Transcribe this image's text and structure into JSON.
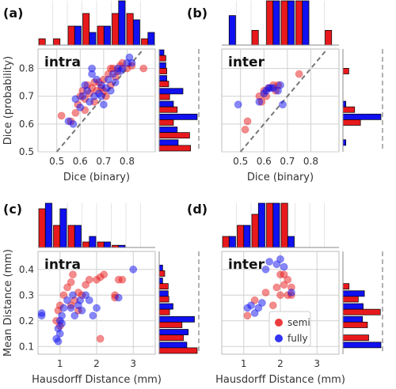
{
  "colors": {
    "semi": "#e8191c",
    "fully": "#1010f0",
    "grid": "#d0d0d0",
    "diagonal": "#777777"
  },
  "chart_data": [
    {
      "type": "scatter",
      "panel_letter": "(a)",
      "annotation": "intra",
      "xlabel": "Dice (binary)",
      "ylabel": "Dice (probability)",
      "xlim": [
        0.42,
        0.92
      ],
      "ylim": [
        0.5,
        0.87
      ],
      "xticks": [
        0.5,
        0.6,
        0.7,
        0.8
      ],
      "xtick_labels": [
        "0.5",
        "0.6",
        "0.7",
        "0.8"
      ],
      "yticks": [
        0.5,
        0.6,
        0.7,
        0.8
      ],
      "ytick_labels": [
        "0.5",
        "0.6",
        "0.7",
        "0.8"
      ],
      "grid": true,
      "diagonal": true,
      "marginals": true,
      "series": [
        {
          "name": "semi",
          "color_key": "semi",
          "points": [
            [
              0.52,
              0.63
            ],
            [
              0.56,
              0.61
            ],
            [
              0.58,
              0.64
            ],
            [
              0.59,
              0.67
            ],
            [
              0.6,
              0.7
            ],
            [
              0.61,
              0.72
            ],
            [
              0.62,
              0.69
            ],
            [
              0.63,
              0.74
            ],
            [
              0.64,
              0.71
            ],
            [
              0.65,
              0.73
            ],
            [
              0.66,
              0.68
            ],
            [
              0.67,
              0.72
            ],
            [
              0.68,
              0.75
            ],
            [
              0.69,
              0.73
            ],
            [
              0.7,
              0.76
            ],
            [
              0.71,
              0.7
            ],
            [
              0.72,
              0.78
            ],
            [
              0.73,
              0.74
            ],
            [
              0.74,
              0.8
            ],
            [
              0.75,
              0.77
            ],
            [
              0.76,
              0.79
            ],
            [
              0.77,
              0.81
            ],
            [
              0.78,
              0.82
            ],
            [
              0.8,
              0.8
            ],
            [
              0.82,
              0.81
            ],
            [
              0.87,
              0.8
            ],
            [
              0.62,
              0.65
            ],
            [
              0.66,
              0.75
            ],
            [
              0.7,
              0.72
            ],
            [
              0.73,
              0.8
            ]
          ]
        },
        {
          "name": "fully",
          "color_key": "fully",
          "points": [
            [
              0.55,
              0.61
            ],
            [
              0.57,
              0.6
            ],
            [
              0.58,
              0.69
            ],
            [
              0.6,
              0.66
            ],
            [
              0.61,
              0.7
            ],
            [
              0.62,
              0.74
            ],
            [
              0.63,
              0.72
            ],
            [
              0.64,
              0.68
            ],
            [
              0.65,
              0.78
            ],
            [
              0.66,
              0.7
            ],
            [
              0.67,
              0.76
            ],
            [
              0.68,
              0.71
            ],
            [
              0.69,
              0.74
            ],
            [
              0.7,
              0.67
            ],
            [
              0.71,
              0.73
            ],
            [
              0.72,
              0.76
            ],
            [
              0.73,
              0.72
            ],
            [
              0.74,
              0.78
            ],
            [
              0.75,
              0.75
            ],
            [
              0.76,
              0.8
            ],
            [
              0.77,
              0.79
            ],
            [
              0.78,
              0.8
            ],
            [
              0.8,
              0.82
            ],
            [
              0.81,
              0.84
            ],
            [
              0.82,
              0.82
            ],
            [
              0.65,
              0.8
            ],
            [
              0.69,
              0.7
            ]
          ]
        }
      ],
      "top_hist": {
        "bins": 8,
        "semi": [
          1,
          1,
          3,
          5,
          3,
          5,
          5,
          1
        ],
        "fully": [
          0,
          0,
          3,
          2,
          3,
          7,
          4,
          2
        ]
      },
      "side_hist": {
        "bins": 8,
        "semi": [
          0.7,
          0.8,
          1,
          1.1,
          1.9,
          1.5,
          3.2,
          3.3
        ],
        "fully": [
          0.5,
          0.7,
          0.8,
          2.5,
          1.5,
          4,
          1.9,
          2
        ]
      }
    },
    {
      "type": "scatter",
      "panel_letter": "(b)",
      "annotation": "inter",
      "xlabel": "Dice (binary)",
      "ylabel": "",
      "xlim": [
        0.42,
        0.92
      ],
      "ylim": [
        0.5,
        0.87
      ],
      "xticks": [
        0.5,
        0.6,
        0.7,
        0.8
      ],
      "xtick_labels": [
        "0.5",
        "0.6",
        "0.7",
        "0.8"
      ],
      "yticks": [
        0.5,
        0.6,
        0.7,
        0.8
      ],
      "ytick_labels": [
        "",
        "",
        "",
        ""
      ],
      "grid": true,
      "diagonal": true,
      "marginals": true,
      "series": [
        {
          "name": "semi",
          "color_key": "semi",
          "points": [
            [
              0.52,
              0.58
            ],
            [
              0.53,
              0.61
            ],
            [
              0.58,
              0.7
            ],
            [
              0.59,
              0.68
            ],
            [
              0.6,
              0.72
            ],
            [
              0.61,
              0.7
            ],
            [
              0.62,
              0.73
            ],
            [
              0.64,
              0.74
            ],
            [
              0.65,
              0.72
            ],
            [
              0.66,
              0.74
            ],
            [
              0.75,
              0.78
            ]
          ]
        },
        {
          "name": "fully",
          "color_key": "fully",
          "points": [
            [
              0.49,
              0.67
            ],
            [
              0.58,
              0.68
            ],
            [
              0.6,
              0.71
            ],
            [
              0.61,
              0.72
            ],
            [
              0.62,
              0.73
            ],
            [
              0.63,
              0.73
            ],
            [
              0.64,
              0.73
            ],
            [
              0.66,
              0.72
            ],
            [
              0.67,
              0.74
            ],
            [
              0.68,
              0.67
            ]
          ]
        }
      ],
      "top_hist": {
        "bins": 8,
        "semi": [
          0,
          0,
          1,
          3,
          3,
          3,
          0,
          1
        ],
        "fully": [
          2,
          0,
          0,
          3,
          3,
          3,
          0,
          0
        ]
      },
      "side_hist": {
        "bins": 8,
        "semi": [
          0,
          1,
          0,
          0,
          2,
          3,
          0,
          0
        ],
        "fully": [
          0,
          0,
          0,
          0,
          0.5,
          6.5,
          0,
          0.5
        ]
      }
    },
    {
      "type": "scatter",
      "panel_letter": "(c)",
      "annotation": "intra",
      "xlabel": "Hausdorff Distance (mm)",
      "ylabel": "Mean Distance (mm)",
      "xlim": [
        0.4,
        3.6
      ],
      "ylim": [
        0.07,
        0.47
      ],
      "xticks": [
        1,
        2,
        3
      ],
      "xtick_labels": [
        "1",
        "2",
        "3"
      ],
      "yticks": [
        0.1,
        0.2,
        0.3,
        0.4
      ],
      "ytick_labels": [
        "0.1",
        "0.2",
        "0.3",
        "0.4"
      ],
      "grid": true,
      "diagonal": false,
      "marginals": true,
      "series": [
        {
          "name": "semi",
          "color_key": "semi",
          "points": [
            [
              0.9,
              0.2
            ],
            [
              0.95,
              0.24
            ],
            [
              1.0,
              0.26
            ],
            [
              1.1,
              0.3
            ],
            [
              1.2,
              0.33
            ],
            [
              1.3,
              0.35
            ],
            [
              1.35,
              0.38
            ],
            [
              1.4,
              0.28
            ],
            [
              1.5,
              0.31
            ],
            [
              1.6,
              0.3
            ],
            [
              1.7,
              0.34
            ],
            [
              1.8,
              0.36
            ],
            [
              2.0,
              0.36
            ],
            [
              2.1,
              0.37
            ],
            [
              2.2,
              0.38
            ],
            [
              2.5,
              0.3
            ],
            [
              2.6,
              0.36
            ],
            [
              2.7,
              0.36
            ],
            [
              2.1,
              0.13
            ],
            [
              2.5,
              0.29
            ],
            [
              1.3,
              0.26
            ],
            [
              1.5,
              0.24
            ],
            [
              1.0,
              0.18
            ]
          ]
        },
        {
          "name": "fully",
          "color_key": "fully",
          "points": [
            [
              0.9,
              0.13
            ],
            [
              0.95,
              0.12
            ],
            [
              1.0,
              0.15
            ],
            [
              1.0,
              0.2
            ],
            [
              1.05,
              0.22
            ],
            [
              1.1,
              0.25
            ],
            [
              1.2,
              0.28
            ],
            [
              1.3,
              0.25
            ],
            [
              1.35,
              0.3
            ],
            [
              1.4,
              0.22
            ],
            [
              1.5,
              0.26
            ],
            [
              1.55,
              0.28
            ],
            [
              1.6,
              0.24
            ],
            [
              1.7,
              0.3
            ],
            [
              1.8,
              0.28
            ],
            [
              1.9,
              0.22
            ],
            [
              2.0,
              0.25
            ],
            [
              2.6,
              0.29
            ],
            [
              3.0,
              0.4
            ],
            [
              0.95,
              0.17
            ],
            [
              1.05,
              0.19
            ],
            [
              0.5,
              0.22
            ],
            [
              0.5,
              0.23
            ]
          ]
        }
      ],
      "top_hist": {
        "bins": 8,
        "semi": [
          7,
          4,
          4,
          1,
          1,
          0.4,
          0,
          0
        ],
        "fully": [
          8,
          7,
          4,
          2,
          1,
          0.4,
          0,
          0
        ]
      },
      "side_hist": {
        "bins": 8,
        "semi": [
          0,
          0.8,
          1.3,
          1.4,
          1.5,
          3.3,
          3.5,
          5.5
        ],
        "fully": [
          0,
          0.5,
          0.5,
          1.3,
          2,
          5.1,
          4.2,
          4
        ]
      }
    },
    {
      "type": "scatter",
      "panel_letter": "(d)",
      "annotation": "inter",
      "xlabel": "Hausdorff Distance (mm)",
      "ylabel": "",
      "xlim": [
        0.4,
        3.6
      ],
      "ylim": [
        0.07,
        0.47
      ],
      "xticks": [
        1,
        2,
        3
      ],
      "xtick_labels": [
        "1",
        "2",
        "3"
      ],
      "yticks": [
        0.1,
        0.2,
        0.3,
        0.4
      ],
      "ytick_labels": [
        "",
        "",
        "",
        ""
      ],
      "grid": true,
      "diagonal": false,
      "marginals": true,
      "series": [
        {
          "name": "semi",
          "color_key": "semi",
          "points": [
            [
              1.1,
              0.22
            ],
            [
              1.3,
              0.28
            ],
            [
              1.6,
              0.31
            ],
            [
              1.9,
              0.33
            ],
            [
              2.0,
              0.3
            ],
            [
              2.1,
              0.34
            ],
            [
              2.2,
              0.36
            ],
            [
              2.0,
              0.38
            ],
            [
              2.1,
              0.38
            ],
            [
              1.8,
              0.26
            ],
            [
              2.2,
              0.3
            ],
            [
              2.3,
              0.33
            ],
            [
              2.3,
              0.3
            ]
          ]
        },
        {
          "name": "fully",
          "color_key": "fully",
          "points": [
            [
              1.1,
              0.25
            ],
            [
              1.2,
              0.26
            ],
            [
              1.3,
              0.23
            ],
            [
              1.4,
              0.25
            ],
            [
              1.6,
              0.4
            ],
            [
              1.7,
              0.43
            ],
            [
              1.9,
              0.42
            ],
            [
              2.0,
              0.44
            ],
            [
              2.1,
              0.41
            ],
            [
              2.3,
              0.31
            ],
            [
              1.5,
              0.27
            ]
          ]
        }
      ],
      "top_hist": {
        "bins": 8,
        "semi": [
          1,
          2,
          3,
          4,
          4,
          0,
          0,
          0
        ],
        "fully": [
          1,
          2,
          4,
          4,
          1,
          0,
          0,
          0
        ]
      },
      "side_hist": {
        "bins": 8,
        "semi": [
          0,
          0,
          1,
          2.5,
          6.1,
          4,
          4.2,
          0
        ],
        "fully": [
          0,
          0,
          0,
          3.5,
          3.3,
          3.2,
          0,
          6.2
        ]
      }
    }
  ],
  "legend": {
    "placement": "lower-right of panel (d)",
    "items": [
      {
        "label": "semi",
        "color_key": "semi"
      },
      {
        "label": "fully",
        "color_key": "fully"
      }
    ]
  }
}
